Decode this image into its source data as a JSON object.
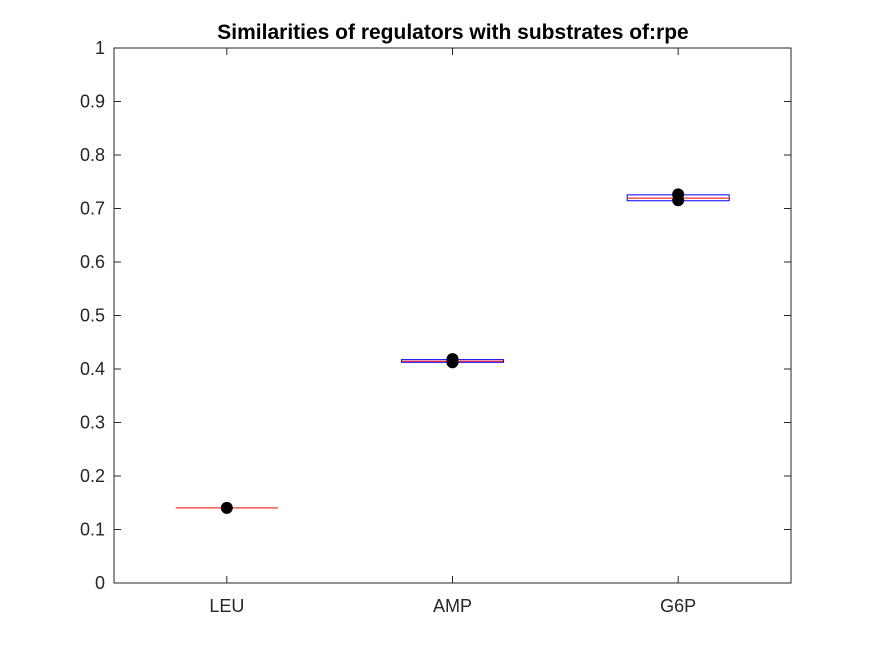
{
  "colors": {
    "box_edge": "#0000ff",
    "median": "#ff0000",
    "points": "#000000",
    "axes": "#262626",
    "background": "#ffffff"
  },
  "chart_data": {
    "type": "box",
    "title": "Similarities of regulators with substrates of:rpe",
    "xlabel": "",
    "ylabel": "",
    "categories": [
      "LEU",
      "AMP",
      "G6P"
    ],
    "ylim": [
      0,
      1
    ],
    "yticks": [
      0,
      0.1,
      0.2,
      0.3,
      0.4,
      0.5,
      0.6,
      0.7,
      0.8,
      0.9,
      1
    ],
    "ytick_labels": [
      "0",
      "0.1",
      "0.2",
      "0.3",
      "0.4",
      "0.5",
      "0.6",
      "0.7",
      "0.8",
      "0.9",
      "1"
    ],
    "grid": false,
    "boxes": [
      {
        "category": "LEU",
        "q1": 0.1405,
        "median": 0.1405,
        "q3": 0.1405,
        "points": [
          0.1405
        ]
      },
      {
        "category": "AMP",
        "q1": 0.4125,
        "median": 0.4145,
        "q3": 0.4175,
        "points": [
          0.4125,
          0.4185
        ]
      },
      {
        "category": "G6P",
        "q1": 0.7145,
        "median": 0.7195,
        "q3": 0.7255,
        "points": [
          0.7155,
          0.7265
        ]
      }
    ]
  }
}
